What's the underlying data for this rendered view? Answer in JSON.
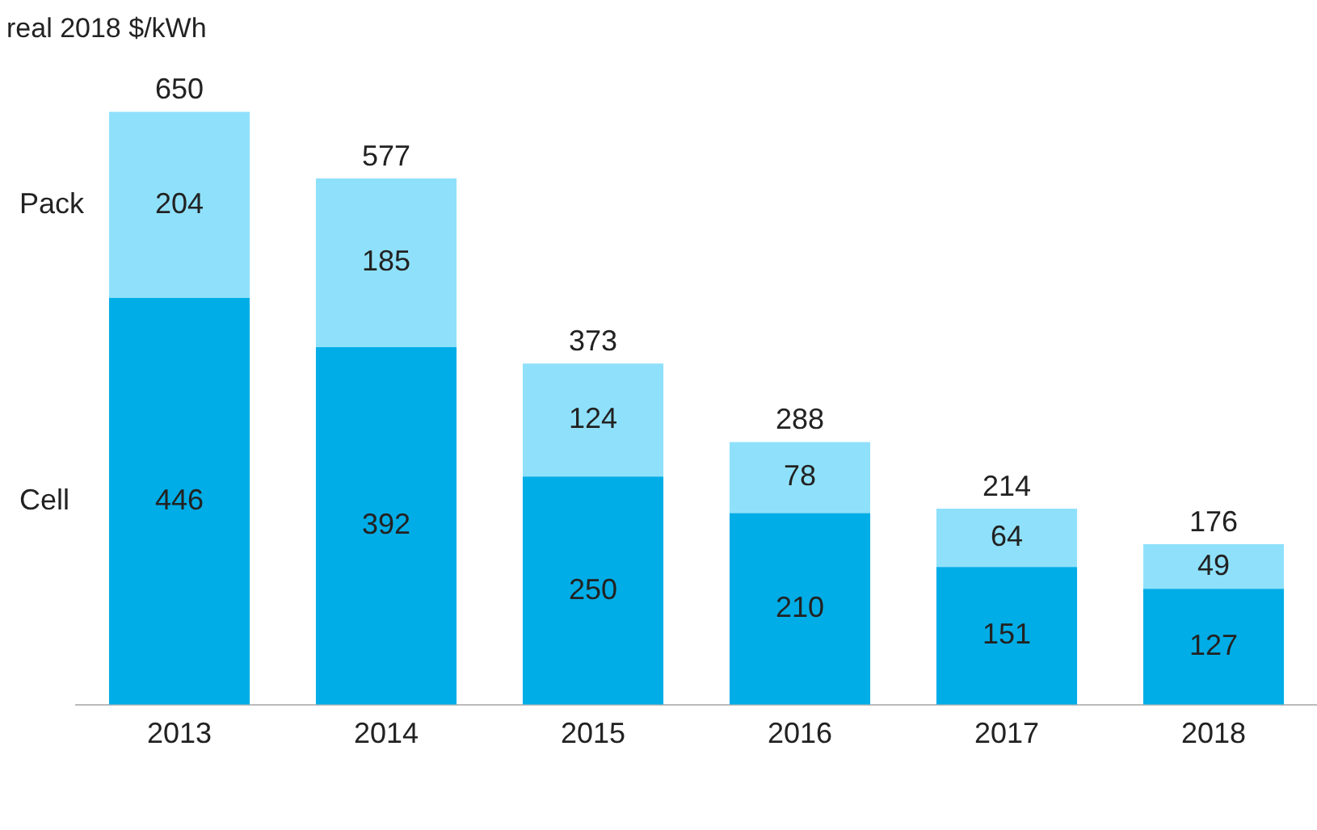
{
  "chart_data": {
    "type": "bar",
    "stacked": true,
    "ylabel": "real 2018 $/kWh",
    "categories": [
      "2013",
      "2014",
      "2015",
      "2016",
      "2017",
      "2018"
    ],
    "series": [
      {
        "name": "Cell",
        "color": "#00ade6",
        "values": [
          446,
          392,
          250,
          210,
          151,
          127
        ]
      },
      {
        "name": "Pack",
        "color": "#8fe1fb",
        "values": [
          204,
          185,
          124,
          78,
          64,
          49
        ]
      }
    ],
    "data_labels": true,
    "totals": [
      "650",
      "577",
      "373",
      "288",
      "214",
      "176"
    ],
    "legend": false,
    "grid": false
  }
}
